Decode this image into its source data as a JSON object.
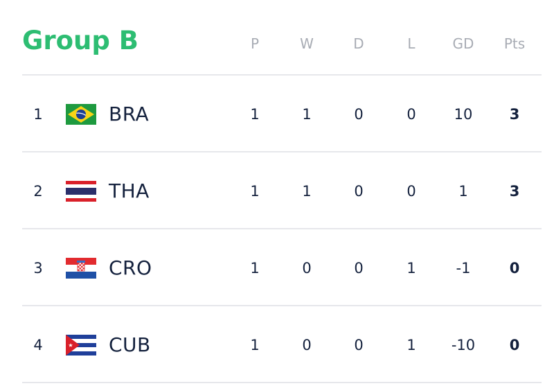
{
  "group": {
    "title": "Group B",
    "accent_color": "#2dbd72"
  },
  "columns": {
    "p": "P",
    "w": "W",
    "d": "D",
    "l": "L",
    "gd": "GD",
    "pts": "Pts"
  },
  "rows": [
    {
      "rank": "1",
      "team": "BRA",
      "flag": "brazil-flag",
      "p": "1",
      "w": "1",
      "d": "0",
      "l": "0",
      "gd": "10",
      "pts": "3"
    },
    {
      "rank": "2",
      "team": "THA",
      "flag": "thailand-flag",
      "p": "1",
      "w": "1",
      "d": "0",
      "l": "0",
      "gd": "1",
      "pts": "3"
    },
    {
      "rank": "3",
      "team": "CRO",
      "flag": "croatia-flag",
      "p": "1",
      "w": "0",
      "d": "0",
      "l": "1",
      "gd": "-1",
      "pts": "0"
    },
    {
      "rank": "4",
      "team": "CUB",
      "flag": "cuba-flag",
      "p": "1",
      "w": "0",
      "d": "0",
      "l": "1",
      "gd": "-10",
      "pts": "0"
    }
  ]
}
